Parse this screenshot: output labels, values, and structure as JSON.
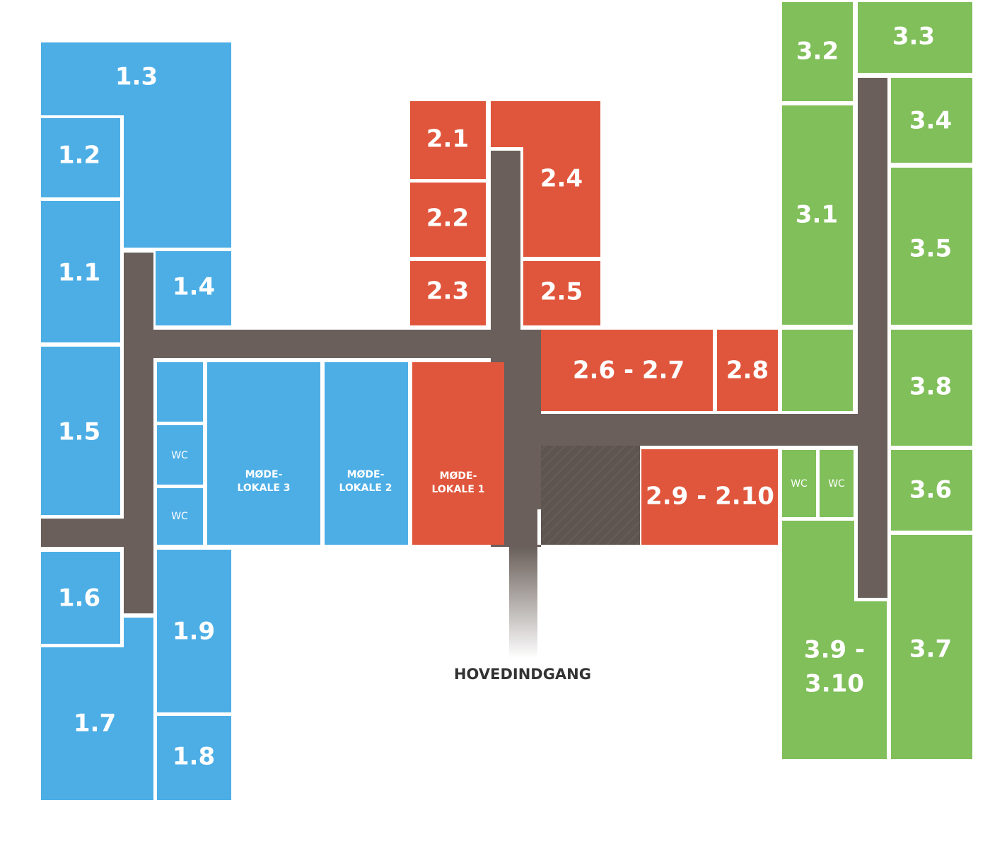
{
  "rooms": [
    {
      "label": "1.3"
    },
    {
      "label": "1.2"
    },
    {
      "label": "1.1"
    },
    {
      "label": "1.4"
    },
    {
      "label": "1.5"
    },
    {
      "label": "1.6"
    },
    {
      "label": "1.7"
    },
    {
      "label": "1.9"
    },
    {
      "label": "1.8"
    },
    {
      "label": "WC"
    },
    {
      "label": "WC"
    },
    {
      "lines": [
        "MØDE-",
        "LOKALE 3"
      ]
    },
    {
      "lines": [
        "MØDE-",
        "LOKALE 2"
      ]
    },
    {
      "lines": [
        "MØDE-",
        "LOKALE 1"
      ]
    },
    {
      "label": "2.1"
    },
    {
      "label": "2.2"
    },
    {
      "label": "2.3"
    },
    {
      "label": "2.4"
    },
    {
      "label": "2.5"
    },
    {
      "label": "2.6 - 2.7"
    },
    {
      "label": "2.8"
    },
    {
      "label": "2.9 - 2.10"
    },
    {
      "label": "3.2"
    },
    {
      "label": "3.3"
    },
    {
      "label": "3.1"
    },
    {
      "label": "3.4"
    },
    {
      "label": "3.5"
    },
    {
      "label": "3.8"
    },
    {
      "label": "3.6"
    },
    {
      "label": "WC"
    },
    {
      "label": "WC"
    },
    {
      "lines": [
        "3.9 -",
        "3.10"
      ]
    },
    {
      "label": "3.7"
    }
  ],
  "entrance": "HOVEDINDGANG"
}
